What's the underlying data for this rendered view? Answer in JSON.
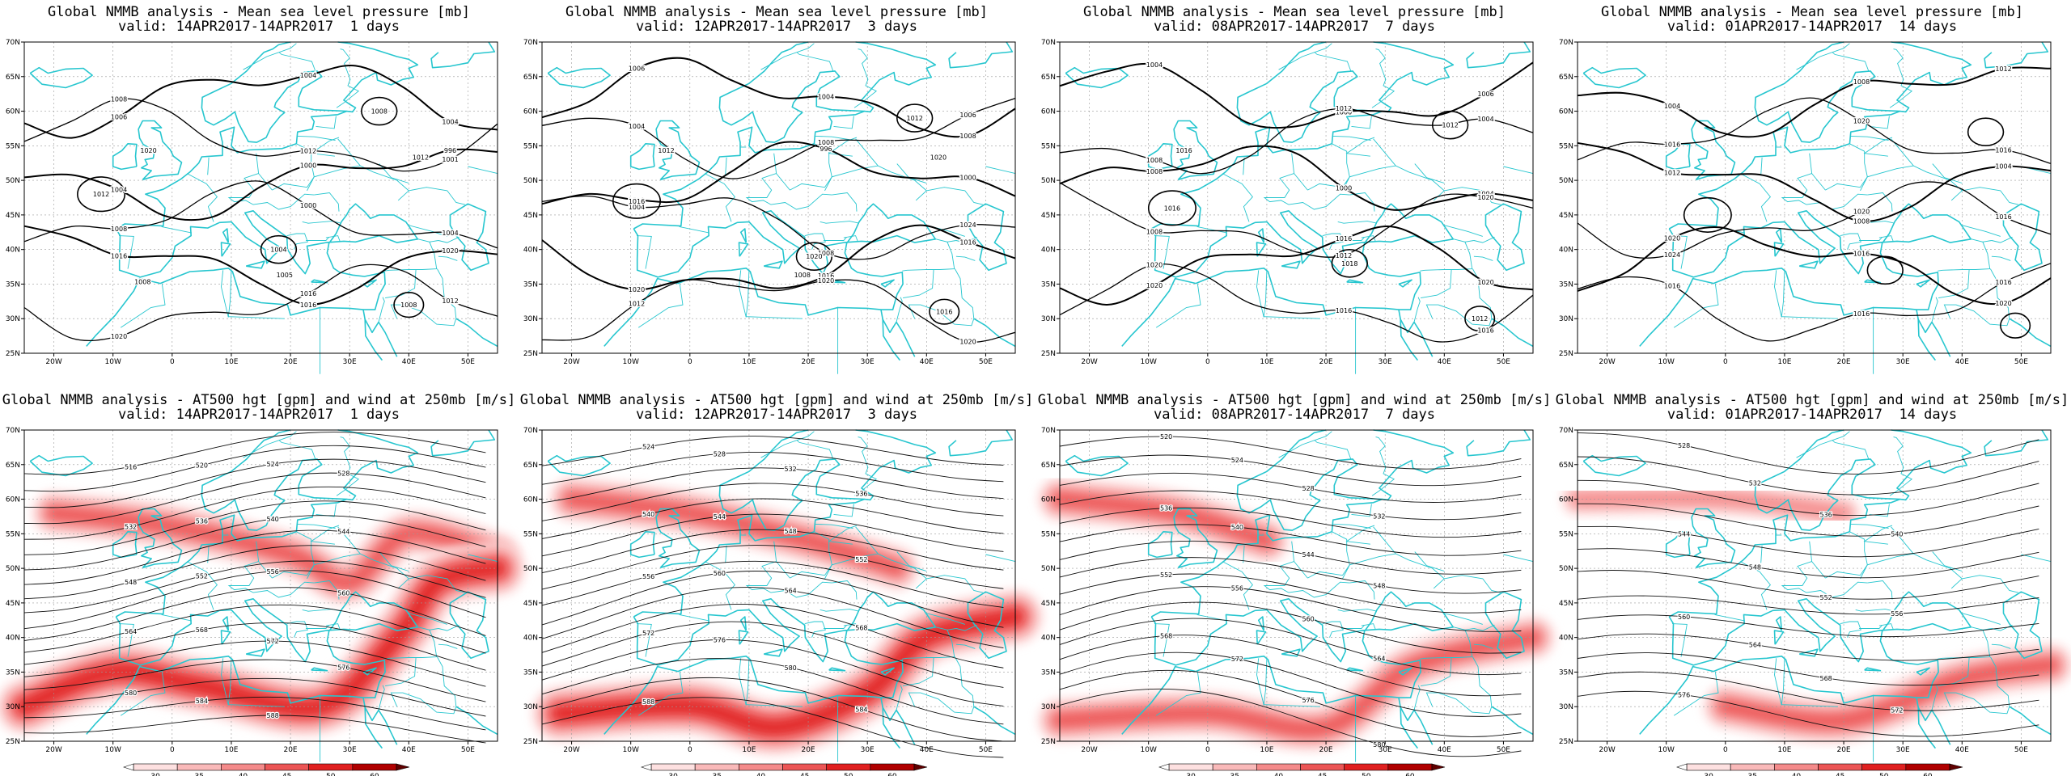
{
  "chart_data": [
    {
      "type": "contour",
      "title": "Global NMMB analysis - Mean sea level pressure [mb]",
      "subtitle": "valid: 14APR2017-14APR2017  1 days",
      "field": "mslp",
      "xlabels": [
        "20W",
        "10W",
        "0",
        "10E",
        "20E",
        "30E",
        "40E",
        "50E"
      ],
      "ylabels": [
        "70N",
        "65N",
        "60N",
        "55N",
        "50N",
        "45N",
        "40N",
        "35N",
        "30N",
        "25N"
      ],
      "xlim": [
        -25,
        55
      ],
      "ylim": [
        25,
        70
      ],
      "contour_labels": [
        "1006",
        "1004",
        "1004",
        "1008",
        "1012",
        "1001",
        "1004",
        "1000",
        "996",
        "1008",
        "1000",
        "1004",
        "1016",
        "1016",
        "1020",
        "1020",
        "1016",
        "1012",
        "1008",
        "1012",
        "1004",
        "1008",
        "1020",
        "1005",
        "1012",
        "1008"
      ]
    },
    {
      "type": "contour",
      "title": "Global NMMB analysis - Mean sea level pressure [mb]",
      "subtitle": "valid: 12APR2017-14APR2017  3 days",
      "field": "mslp",
      "xlabels": [
        "20W",
        "10W",
        "0",
        "10E",
        "20E",
        "30E",
        "40E",
        "50E"
      ],
      "ylabels": [
        "70N",
        "65N",
        "60N",
        "55N",
        "50N",
        "45N",
        "40N",
        "35N",
        "30N",
        "25N"
      ],
      "xlim": [
        -25,
        55
      ],
      "ylim": [
        25,
        70
      ],
      "contour_labels": [
        "1006",
        "1004",
        "1008",
        "1004",
        "1008",
        "1006",
        "1000",
        "996",
        "1000",
        "1004",
        "1008",
        "1024",
        "1020",
        "1016",
        "1016",
        "1012",
        "1020",
        "1020",
        "1012",
        "1016",
        "1020",
        "1016",
        "1012",
        "1008",
        "1020"
      ]
    },
    {
      "type": "contour",
      "title": "Global NMMB analysis - Mean sea level pressure [mb]",
      "subtitle": "valid: 08APR2017-14APR2017  7 days",
      "field": "mslp",
      "xlabels": [
        "20W",
        "10W",
        "0",
        "10E",
        "20E",
        "30E",
        "40E",
        "50E"
      ],
      "ylabels": [
        "70N",
        "65N",
        "60N",
        "55N",
        "50N",
        "45N",
        "40N",
        "35N",
        "30N",
        "25N"
      ],
      "xlim": [
        -25,
        55
      ],
      "ylim": [
        25,
        70
      ],
      "contour_labels": [
        "1004",
        "1000",
        "1006",
        "1008",
        "1012",
        "1004",
        "1008",
        "1000",
        "1004",
        "1008",
        "1012",
        "1020",
        "1020",
        "1016",
        "1020",
        "1020",
        "1016",
        "1016",
        "1012",
        "1016",
        "1018",
        "1012",
        "1016"
      ]
    },
    {
      "type": "contour",
      "title": "Global NMMB analysis - Mean sea level pressure [mb]",
      "subtitle": "valid: 01APR2017-14APR2017  14 days",
      "field": "mslp",
      "xlabels": [
        "20W",
        "10W",
        "0",
        "10E",
        "20E",
        "30E",
        "40E",
        "50E"
      ],
      "ylabels": [
        "70N",
        "65N",
        "60N",
        "55N",
        "50N",
        "45N",
        "40N",
        "35N",
        "30N",
        "25N"
      ],
      "xlim": [
        -25,
        55
      ],
      "ylim": [
        25,
        70
      ],
      "contour_labels": [
        "1004",
        "1008",
        "1012",
        "1016",
        "1020",
        "1016",
        "1012",
        "1008",
        "1004",
        "1024",
        "1020",
        "1016",
        "1020",
        "1016",
        "1020",
        "1016",
        "1016",
        "1016"
      ]
    },
    {
      "type": "contour",
      "title": "Global NMMB analysis - AT500 hgt [gpm] and wind at 250mb [m/s]",
      "subtitle": "valid: 14APR2017-14APR2017  1 days",
      "field": "z500_wind250",
      "xlabels": [
        "20W",
        "10W",
        "0",
        "10E",
        "20E",
        "30E",
        "40E",
        "50E"
      ],
      "ylabels": [
        "70N",
        "65N",
        "60N",
        "55N",
        "50N",
        "45N",
        "40N",
        "35N",
        "30N",
        "25N"
      ],
      "xlim": [
        -25,
        55
      ],
      "ylim": [
        25,
        70
      ],
      "contour_labels": [
        "516",
        "520",
        "524",
        "528",
        "532",
        "536",
        "540",
        "544",
        "548",
        "552",
        "556",
        "560",
        "564",
        "568",
        "572",
        "576",
        "580",
        "584",
        "588"
      ]
    },
    {
      "type": "contour",
      "title": "Global NMMB analysis - AT500 hgt [gpm] and wind at 250mb [m/s]",
      "subtitle": "valid: 12APR2017-14APR2017  3 days",
      "field": "z500_wind250",
      "xlabels": [
        "20W",
        "10W",
        "0",
        "10E",
        "20E",
        "30E",
        "40E",
        "50E"
      ],
      "ylabels": [
        "70N",
        "65N",
        "60N",
        "55N",
        "50N",
        "45N",
        "40N",
        "35N",
        "30N",
        "25N"
      ],
      "xlim": [
        -25,
        55
      ],
      "ylim": [
        25,
        70
      ],
      "contour_labels": [
        "524",
        "528",
        "532",
        "536",
        "540",
        "544",
        "548",
        "552",
        "556",
        "560",
        "564",
        "568",
        "572",
        "576",
        "580",
        "584",
        "588"
      ]
    },
    {
      "type": "contour",
      "title": "Global NMMB analysis - AT500 hgt [gpm] and wind at 250mb [m/s]",
      "subtitle": "valid: 08APR2017-14APR2017  7 days",
      "field": "z500_wind250",
      "xlabels": [
        "20W",
        "10W",
        "0",
        "10E",
        "20E",
        "30E",
        "40E",
        "50E"
      ],
      "ylabels": [
        "70N",
        "65N",
        "60N",
        "55N",
        "50N",
        "45N",
        "40N",
        "35N",
        "30N",
        "25N"
      ],
      "xlim": [
        -25,
        55
      ],
      "ylim": [
        25,
        70
      ],
      "contour_labels": [
        "520",
        "524",
        "528",
        "532",
        "536",
        "540",
        "544",
        "548",
        "552",
        "556",
        "560",
        "564",
        "568",
        "572",
        "576",
        "580"
      ]
    },
    {
      "type": "contour",
      "title": "Global NMMB analysis - AT500 hgt [gpm] and wind at 250mb [m/s]",
      "subtitle": "valid: 01APR2017-14APR2017  14 days",
      "field": "z500_wind250",
      "xlabels": [
        "20W",
        "10W",
        "0",
        "10E",
        "20E",
        "30E",
        "40E",
        "50E"
      ],
      "ylabels": [
        "70N",
        "65N",
        "60N",
        "55N",
        "50N",
        "45N",
        "40N",
        "35N",
        "30N",
        "25N"
      ],
      "xlim": [
        -25,
        55
      ],
      "ylim": [
        25,
        70
      ],
      "contour_labels": [
        "528",
        "532",
        "536",
        "540",
        "544",
        "548",
        "552",
        "556",
        "560",
        "564",
        "568",
        "572",
        "576"
      ]
    }
  ],
  "colorbar": {
    "ticks": [
      "30",
      "35",
      "40",
      "45",
      "50",
      "60"
    ],
    "colors": [
      "#ffffff",
      "#fde0e0",
      "#f9b9b9",
      "#f48a8a",
      "#ec5555",
      "#e02020",
      "#b00000",
      "#600000"
    ]
  },
  "colors": {
    "coast": "#27c6cf",
    "contour": "#000000",
    "grid": "#9a9a9a"
  }
}
